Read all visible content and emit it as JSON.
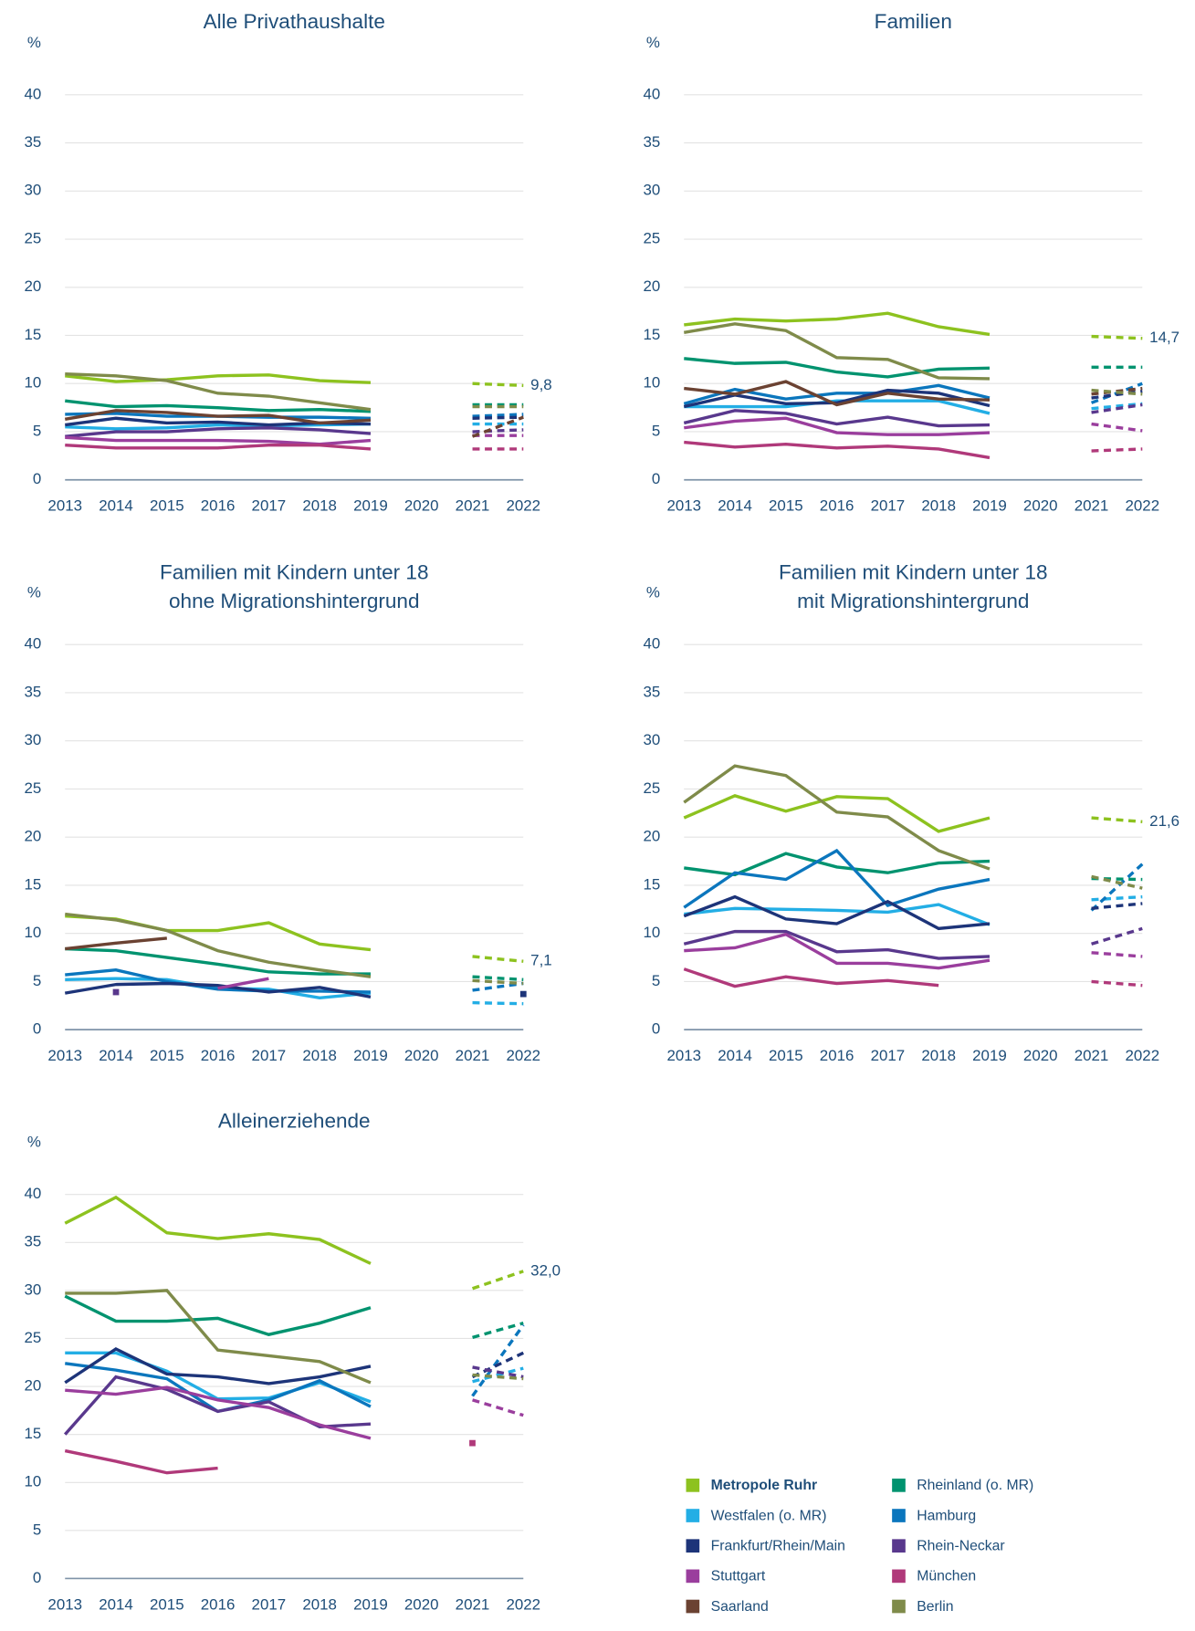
{
  "chart_data": [
    {
      "type": "line",
      "title": "Alle Privathaushalte",
      "ylabel": "%",
      "x": [
        2013,
        2014,
        2015,
        2016,
        2017,
        2018,
        2019,
        2020,
        2021,
        2022
      ],
      "xlim": [
        2013,
        2022
      ],
      "xticks": [
        2013,
        2014,
        2015,
        2016,
        2017,
        2018,
        2019,
        2020,
        2021,
        2022
      ],
      "ylim": [
        0,
        40
      ],
      "yticks": [
        0,
        5,
        10,
        15,
        20,
        25,
        30,
        35,
        40
      ],
      "grid": true,
      "dashed_from": 2021,
      "series": [
        {
          "name": "Metropole Ruhr",
          "color": "#8dc21f",
          "values": [
            10.8,
            10.2,
            10.4,
            10.8,
            10.9,
            10.3,
            10.1,
            null,
            10.0,
            9.8
          ],
          "value_labels": [
            null,
            null,
            null,
            null,
            null,
            null,
            null,
            null,
            null,
            "9,8"
          ]
        },
        {
          "name": "Rheinland (o. MR)",
          "color": "#00936f",
          "values": [
            8.2,
            7.6,
            7.7,
            7.5,
            7.2,
            7.3,
            7.1,
            null,
            7.8,
            7.8
          ]
        },
        {
          "name": "Westfalen (o. MR)",
          "color": "#23aee5",
          "values": [
            5.5,
            5.3,
            5.4,
            5.7,
            5.6,
            5.7,
            5.8,
            null,
            5.8,
            5.8
          ]
        },
        {
          "name": "Hamburg",
          "color": "#0b76bd",
          "values": [
            6.8,
            6.9,
            6.6,
            6.6,
            6.5,
            6.5,
            6.4,
            null,
            6.6,
            6.8
          ]
        },
        {
          "name": "Frankfurt/Rhein/Main",
          "color": "#1d3479",
          "values": [
            5.7,
            6.4,
            5.9,
            6.0,
            5.7,
            5.9,
            5.8,
            null,
            6.4,
            6.5
          ]
        },
        {
          "name": "Rhein-Neckar",
          "color": "#59388d",
          "values": [
            4.5,
            5.0,
            5.0,
            5.3,
            5.4,
            5.2,
            4.8,
            null,
            5.0,
            5.2
          ]
        },
        {
          "name": "Stuttgart",
          "color": "#9a3e9d",
          "values": [
            4.4,
            4.1,
            4.1,
            4.1,
            4.0,
            3.7,
            4.1,
            null,
            4.6,
            4.6
          ]
        },
        {
          "name": "München",
          "color": "#b0397a",
          "values": [
            3.6,
            3.3,
            3.3,
            3.3,
            3.6,
            3.6,
            3.2,
            null,
            3.2,
            3.2
          ]
        },
        {
          "name": "Saarland",
          "color": "#6b4232",
          "values": [
            6.3,
            7.2,
            7.0,
            6.6,
            6.7,
            5.9,
            6.2,
            null,
            4.5,
            6.5
          ]
        },
        {
          "name": "Berlin",
          "color": "#7f8b4a",
          "values": [
            11.0,
            10.8,
            10.3,
            9.0,
            8.7,
            8.0,
            7.3,
            null,
            7.6,
            7.6
          ]
        }
      ]
    },
    {
      "type": "line",
      "title": "Familien",
      "ylabel": "%",
      "x": [
        2013,
        2014,
        2015,
        2016,
        2017,
        2018,
        2019,
        2020,
        2021,
        2022
      ],
      "xlim": [
        2013,
        2022
      ],
      "xticks": [
        2013,
        2014,
        2015,
        2016,
        2017,
        2018,
        2019,
        2020,
        2021,
        2022
      ],
      "ylim": [
        0,
        40
      ],
      "yticks": [
        0,
        5,
        10,
        15,
        20,
        25,
        30,
        35,
        40
      ],
      "grid": true,
      "dashed_from": 2021,
      "series": [
        {
          "name": "Metropole Ruhr",
          "color": "#8dc21f",
          "values": [
            16.1,
            16.7,
            16.5,
            16.7,
            17.3,
            15.9,
            15.1,
            null,
            14.9,
            14.7
          ],
          "value_labels": [
            null,
            null,
            null,
            null,
            null,
            null,
            null,
            null,
            null,
            "14,7"
          ]
        },
        {
          "name": "Rheinland (o. MR)",
          "color": "#00936f",
          "values": [
            12.6,
            12.1,
            12.2,
            11.2,
            10.7,
            11.5,
            11.6,
            null,
            11.7,
            11.7
          ]
        },
        {
          "name": "Westfalen (o. MR)",
          "color": "#23aee5",
          "values": [
            7.6,
            7.6,
            7.6,
            8.2,
            8.2,
            8.2,
            6.9,
            null,
            7.4,
            7.9
          ]
        },
        {
          "name": "Hamburg",
          "color": "#0b76bd",
          "values": [
            7.9,
            9.4,
            8.4,
            9.0,
            9.0,
            9.8,
            8.5,
            null,
            8.0,
            10.0
          ]
        },
        {
          "name": "Frankfurt/Rhein/Main",
          "color": "#1d3479",
          "values": [
            7.6,
            8.8,
            7.9,
            8.0,
            9.3,
            9.0,
            7.7,
            null,
            8.5,
            9.2
          ]
        },
        {
          "name": "Rhein-Neckar",
          "color": "#59388d",
          "values": [
            5.9,
            7.2,
            6.9,
            5.8,
            6.5,
            5.6,
            5.7,
            null,
            7.0,
            7.8
          ]
        },
        {
          "name": "Stuttgart",
          "color": "#9a3e9d",
          "values": [
            5.4,
            6.1,
            6.4,
            4.9,
            4.7,
            4.7,
            4.9,
            null,
            5.8,
            5.1
          ]
        },
        {
          "name": "München",
          "color": "#b0397a",
          "values": [
            3.9,
            3.4,
            3.7,
            3.3,
            3.5,
            3.2,
            2.3,
            null,
            3.0,
            3.2
          ]
        },
        {
          "name": "Saarland",
          "color": "#6b4232",
          "values": [
            9.5,
            8.9,
            10.2,
            7.8,
            9.0,
            8.4,
            8.3,
            null,
            8.9,
            9.5
          ]
        },
        {
          "name": "Berlin",
          "color": "#7f8b4a",
          "values": [
            15.3,
            16.2,
            15.5,
            12.7,
            12.5,
            10.6,
            10.5,
            null,
            9.3,
            8.9
          ]
        }
      ]
    },
    {
      "type": "line",
      "title": [
        "Familien mit Kindern unter 18",
        "ohne Migrationshintergrund"
      ],
      "ylabel": "%",
      "x": [
        2013,
        2014,
        2015,
        2016,
        2017,
        2018,
        2019,
        2020,
        2021,
        2022
      ],
      "xlim": [
        2013,
        2022
      ],
      "xticks": [
        2013,
        2014,
        2015,
        2016,
        2017,
        2018,
        2019,
        2020,
        2021,
        2022
      ],
      "ylim": [
        0,
        40
      ],
      "yticks": [
        0,
        5,
        10,
        15,
        20,
        25,
        30,
        35,
        40
      ],
      "grid": true,
      "dashed_from": 2021,
      "series": [
        {
          "name": "Metropole Ruhr",
          "color": "#8dc21f",
          "values": [
            11.8,
            11.5,
            10.3,
            10.3,
            11.1,
            8.9,
            8.3,
            null,
            7.6,
            7.1
          ],
          "value_labels": [
            null,
            null,
            null,
            null,
            null,
            null,
            null,
            null,
            null,
            "7,1"
          ]
        },
        {
          "name": "Rheinland (o. MR)",
          "color": "#00936f",
          "values": [
            8.4,
            8.2,
            7.5,
            6.8,
            6.0,
            5.8,
            5.8,
            null,
            5.5,
            5.2
          ]
        },
        {
          "name": "Westfalen (o. MR)",
          "color": "#23aee5",
          "values": [
            5.2,
            5.3,
            5.2,
            4.3,
            4.2,
            3.3,
            3.8,
            null,
            2.8,
            2.7
          ]
        },
        {
          "name": "Hamburg",
          "color": "#0b76bd",
          "values": [
            5.7,
            6.2,
            5.0,
            4.2,
            4.0,
            4.0,
            3.9,
            null,
            4.1,
            4.8
          ]
        },
        {
          "name": "Frankfurt/Rhein/Main",
          "color": "#1d3479",
          "values": [
            3.8,
            4.7,
            4.8,
            4.6,
            3.9,
            4.4,
            3.4,
            null,
            null,
            3.7
          ]
        },
        {
          "name": "Rhein-Neckar",
          "color": "#59388d",
          "values": [
            null,
            3.9,
            null,
            null,
            null,
            null,
            null,
            null,
            null,
            null
          ]
        },
        {
          "name": "Stuttgart",
          "color": "#9a3e9d",
          "values": [
            null,
            null,
            null,
            4.3,
            5.3,
            null,
            null,
            null,
            null,
            null
          ]
        },
        {
          "name": "München",
          "color": "#b0397a",
          "values": [
            null,
            null,
            null,
            null,
            null,
            null,
            null,
            null,
            null,
            null
          ]
        },
        {
          "name": "Saarland",
          "color": "#6b4232",
          "values": [
            8.4,
            9.0,
            9.5,
            null,
            null,
            null,
            null,
            null,
            null,
            null
          ]
        },
        {
          "name": "Berlin",
          "color": "#7f8b4a",
          "values": [
            12.0,
            11.4,
            10.3,
            8.2,
            7.0,
            6.2,
            5.5,
            null,
            5.1,
            4.8
          ]
        }
      ]
    },
    {
      "type": "line",
      "title": [
        "Familien mit Kindern unter 18",
        "mit Migrationshintergrund"
      ],
      "ylabel": "%",
      "x": [
        2013,
        2014,
        2015,
        2016,
        2017,
        2018,
        2019,
        2020,
        2021,
        2022
      ],
      "xlim": [
        2013,
        2022
      ],
      "xticks": [
        2013,
        2014,
        2015,
        2016,
        2017,
        2018,
        2019,
        2020,
        2021,
        2022
      ],
      "ylim": [
        0,
        40
      ],
      "yticks": [
        0,
        5,
        10,
        15,
        20,
        25,
        30,
        35,
        40
      ],
      "grid": true,
      "dashed_from": 2021,
      "series": [
        {
          "name": "Metropole Ruhr",
          "color": "#8dc21f",
          "values": [
            22.0,
            24.3,
            22.7,
            24.2,
            24.0,
            20.6,
            22.0,
            null,
            22.0,
            21.6
          ],
          "value_labels": [
            null,
            null,
            null,
            null,
            null,
            null,
            null,
            null,
            null,
            "21,6"
          ]
        },
        {
          "name": "Rheinland (o. MR)",
          "color": "#00936f",
          "values": [
            16.8,
            16.1,
            18.3,
            16.9,
            16.3,
            17.3,
            17.5,
            null,
            15.7,
            15.6
          ]
        },
        {
          "name": "Westfalen (o. MR)",
          "color": "#23aee5",
          "values": [
            12.0,
            12.6,
            12.5,
            12.4,
            12.2,
            13.0,
            10.9,
            null,
            13.5,
            13.8
          ]
        },
        {
          "name": "Hamburg",
          "color": "#0b76bd",
          "values": [
            12.7,
            16.3,
            15.6,
            18.6,
            12.9,
            14.6,
            15.6,
            null,
            12.4,
            17.2
          ]
        },
        {
          "name": "Frankfurt/Rhein/Main",
          "color": "#1d3479",
          "values": [
            11.8,
            13.8,
            11.5,
            11.0,
            13.3,
            10.5,
            11.0,
            null,
            12.6,
            13.1
          ]
        },
        {
          "name": "Rhein-Neckar",
          "color": "#59388d",
          "values": [
            8.9,
            10.2,
            10.2,
            8.1,
            8.3,
            7.4,
            7.6,
            null,
            8.9,
            10.5
          ]
        },
        {
          "name": "Stuttgart",
          "color": "#9a3e9d",
          "values": [
            8.2,
            8.5,
            9.9,
            6.9,
            6.9,
            6.4,
            7.2,
            null,
            8.0,
            7.6
          ]
        },
        {
          "name": "München",
          "color": "#b0397a",
          "values": [
            6.3,
            4.5,
            5.5,
            4.8,
            5.1,
            4.6,
            null,
            null,
            5.0,
            4.6
          ]
        },
        {
          "name": "Saarland",
          "color": "#6b4232",
          "values": [
            null,
            null,
            null,
            null,
            null,
            null,
            null,
            null,
            null,
            null
          ]
        },
        {
          "name": "Berlin",
          "color": "#7f8b4a",
          "values": [
            23.6,
            27.4,
            26.4,
            22.6,
            22.1,
            18.6,
            16.7,
            null,
            15.9,
            14.7
          ]
        }
      ]
    },
    {
      "type": "line",
      "title": "Alleinerziehende",
      "ylabel": "%",
      "x": [
        2013,
        2014,
        2015,
        2016,
        2017,
        2018,
        2019,
        2020,
        2021,
        2022
      ],
      "xlim": [
        2013,
        2022
      ],
      "xticks": [
        2013,
        2014,
        2015,
        2016,
        2017,
        2018,
        2019,
        2020,
        2021,
        2022
      ],
      "ylim": [
        0,
        40
      ],
      "yticks": [
        0,
        5,
        10,
        15,
        20,
        25,
        30,
        35,
        40
      ],
      "grid": true,
      "dashed_from": 2021,
      "series": [
        {
          "name": "Metropole Ruhr",
          "color": "#8dc21f",
          "values": [
            37.0,
            39.7,
            36.0,
            35.4,
            35.9,
            35.3,
            32.8,
            null,
            30.2,
            32.0
          ],
          "value_labels": [
            null,
            null,
            null,
            null,
            null,
            null,
            null,
            null,
            null,
            "32,0"
          ]
        },
        {
          "name": "Rheinland (o. MR)",
          "color": "#00936f",
          "values": [
            29.4,
            26.8,
            26.8,
            27.1,
            25.4,
            26.6,
            28.2,
            null,
            25.1,
            26.6
          ]
        },
        {
          "name": "Westfalen (o. MR)",
          "color": "#23aee5",
          "values": [
            23.5,
            23.5,
            21.6,
            18.7,
            18.8,
            20.4,
            18.4,
            null,
            20.5,
            21.9
          ]
        },
        {
          "name": "Hamburg",
          "color": "#0b76bd",
          "values": [
            22.4,
            21.7,
            20.8,
            17.4,
            18.6,
            20.6,
            17.9,
            null,
            19.0,
            26.4
          ]
        },
        {
          "name": "Frankfurt/Rhein/Main",
          "color": "#1d3479",
          "values": [
            20.4,
            23.9,
            21.3,
            21.0,
            20.3,
            21.0,
            22.1,
            null,
            21.0,
            23.5
          ]
        },
        {
          "name": "Rhein-Neckar",
          "color": "#59388d",
          "values": [
            15.0,
            21.0,
            19.7,
            17.4,
            18.4,
            15.8,
            16.1,
            null,
            22.0,
            21.0
          ]
        },
        {
          "name": "Stuttgart",
          "color": "#9a3e9d",
          "values": [
            19.6,
            19.2,
            19.9,
            18.6,
            17.8,
            16.0,
            14.6,
            null,
            18.6,
            17.0
          ]
        },
        {
          "name": "München",
          "color": "#b0397a",
          "values": [
            13.3,
            12.2,
            11.0,
            11.5,
            null,
            null,
            null,
            null,
            14.1,
            null
          ]
        },
        {
          "name": "Saarland",
          "color": "#6b4232",
          "values": [
            null,
            null,
            null,
            null,
            null,
            null,
            null,
            null,
            null,
            null
          ]
        },
        {
          "name": "Berlin",
          "color": "#7f8b4a",
          "values": [
            29.7,
            29.7,
            30.0,
            23.8,
            23.2,
            22.6,
            20.4,
            null,
            21.2,
            20.8
          ]
        }
      ]
    }
  ]
}
